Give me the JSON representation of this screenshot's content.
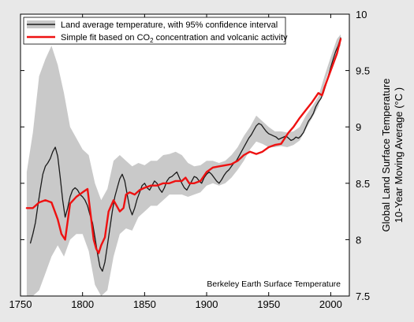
{
  "chart_data": {
    "type": "line",
    "title": "",
    "xlabel": "",
    "ylabel_lines": [
      "Global Land Surface Temperature",
      "10-Year Moving Average",
      "(°C )"
    ],
    "xlim": [
      1750,
      2015
    ],
    "ylim": [
      7.5,
      10
    ],
    "xticks": [
      1750,
      1800,
      1850,
      1900,
      1950,
      2000
    ],
    "yticks": [
      7.5,
      8,
      8.5,
      9,
      9.5,
      10
    ],
    "ytick_labels": [
      "7.5",
      "8",
      "8.5",
      "9",
      "9.5",
      "10"
    ],
    "yaxis_side": "right",
    "grid": false,
    "legend_position": "top-left",
    "annotation": "Berkeley Earth Surface Temperature",
    "colors": {
      "background": "#e8e8e8",
      "plot_background": "#ffffff",
      "uncertainty_band": "#c9c9c9",
      "observed_line": "#1a1a1a",
      "fit_line": "#ee1111"
    },
    "series": [
      {
        "name": "Land average temperature, with 95% confidence interval",
        "role": "observed",
        "x": [
          1758,
          1760,
          1762,
          1764,
          1766,
          1768,
          1770,
          1772,
          1774,
          1776,
          1778,
          1780,
          1782,
          1784,
          1786,
          1788,
          1790,
          1792,
          1794,
          1796,
          1798,
          1800,
          1802,
          1804,
          1806,
          1808,
          1810,
          1812,
          1814,
          1816,
          1818,
          1820,
          1822,
          1824,
          1826,
          1828,
          1830,
          1832,
          1834,
          1836,
          1838,
          1840,
          1842,
          1844,
          1846,
          1848,
          1850,
          1852,
          1854,
          1856,
          1858,
          1860,
          1862,
          1864,
          1866,
          1868,
          1870,
          1872,
          1874,
          1876,
          1878,
          1880,
          1882,
          1884,
          1886,
          1888,
          1890,
          1892,
          1894,
          1896,
          1898,
          1900,
          1902,
          1904,
          1906,
          1908,
          1910,
          1912,
          1914,
          1916,
          1918,
          1920,
          1922,
          1924,
          1926,
          1928,
          1930,
          1932,
          1934,
          1936,
          1938,
          1940,
          1942,
          1944,
          1946,
          1948,
          1950,
          1952,
          1954,
          1956,
          1958,
          1960,
          1962,
          1964,
          1966,
          1968,
          1970,
          1972,
          1974,
          1976,
          1978,
          1980,
          1982,
          1984,
          1986,
          1988,
          1990,
          1992,
          1994,
          1996,
          1998,
          2000,
          2002,
          2004,
          2006,
          2008
        ],
        "y": [
          7.97,
          8.05,
          8.15,
          8.3,
          8.45,
          8.58,
          8.65,
          8.68,
          8.72,
          8.78,
          8.82,
          8.74,
          8.55,
          8.35,
          8.2,
          8.28,
          8.38,
          8.44,
          8.46,
          8.44,
          8.4,
          8.38,
          8.35,
          8.3,
          8.22,
          8.15,
          8.02,
          7.88,
          7.76,
          7.72,
          7.8,
          7.95,
          8.1,
          8.25,
          8.38,
          8.46,
          8.54,
          8.58,
          8.52,
          8.4,
          8.28,
          8.22,
          8.28,
          8.36,
          8.42,
          8.48,
          8.5,
          8.46,
          8.44,
          8.48,
          8.52,
          8.5,
          8.45,
          8.42,
          8.46,
          8.52,
          8.55,
          8.56,
          8.58,
          8.6,
          8.55,
          8.5,
          8.46,
          8.44,
          8.48,
          8.52,
          8.56,
          8.55,
          8.52,
          8.5,
          8.55,
          8.58,
          8.6,
          8.58,
          8.55,
          8.52,
          8.5,
          8.53,
          8.57,
          8.6,
          8.62,
          8.65,
          8.68,
          8.7,
          8.74,
          8.78,
          8.82,
          8.86,
          8.9,
          8.93,
          8.97,
          9.01,
          9.03,
          9.02,
          8.99,
          8.96,
          8.94,
          8.93,
          8.92,
          8.91,
          8.89,
          8.9,
          8.91,
          8.92,
          8.9,
          8.88,
          8.89,
          8.91,
          8.9,
          8.92,
          8.95,
          9.0,
          9.05,
          9.08,
          9.12,
          9.18,
          9.22,
          9.25,
          9.3,
          9.37,
          9.45,
          9.53,
          9.6,
          9.67,
          9.72,
          9.79
        ]
      },
      {
        "name": "Simple fit based on CO2 concentration and volcanic activity",
        "name_parts": [
          "Simple fit based on CO",
          "2",
          " concentration and volcanic activity"
        ],
        "role": "fit",
        "x": [
          1755,
          1760,
          1765,
          1770,
          1775,
          1780,
          1783,
          1786,
          1790,
          1795,
          1800,
          1804,
          1807,
          1809,
          1811,
          1813,
          1815,
          1818,
          1821,
          1825,
          1830,
          1833,
          1835,
          1838,
          1842,
          1846,
          1850,
          1855,
          1860,
          1865,
          1870,
          1875,
          1880,
          1883,
          1886,
          1890,
          1895,
          1900,
          1905,
          1910,
          1915,
          1920,
          1925,
          1930,
          1935,
          1940,
          1945,
          1950,
          1955,
          1960,
          1963,
          1966,
          1970,
          1975,
          1980,
          1985,
          1990,
          1993,
          1995,
          2000,
          2005,
          2008
        ],
        "y": [
          8.28,
          8.28,
          8.33,
          8.35,
          8.33,
          8.18,
          8.05,
          8.0,
          8.32,
          8.38,
          8.42,
          8.45,
          8.18,
          8.0,
          7.92,
          7.88,
          7.95,
          8.02,
          8.25,
          8.35,
          8.25,
          8.28,
          8.4,
          8.42,
          8.4,
          8.44,
          8.46,
          8.48,
          8.48,
          8.5,
          8.5,
          8.52,
          8.52,
          8.55,
          8.5,
          8.5,
          8.52,
          8.6,
          8.64,
          8.65,
          8.66,
          8.67,
          8.7,
          8.75,
          8.78,
          8.76,
          8.78,
          8.82,
          8.84,
          8.85,
          8.9,
          8.95,
          9.0,
          9.08,
          9.15,
          9.22,
          9.3,
          9.28,
          9.35,
          9.5,
          9.65,
          9.78
        ]
      },
      {
        "name": "95% confidence interval",
        "role": "band",
        "x": [
          1755,
          1760,
          1765,
          1770,
          1775,
          1780,
          1785,
          1790,
          1795,
          1800,
          1805,
          1810,
          1815,
          1820,
          1825,
          1830,
          1835,
          1840,
          1845,
          1850,
          1855,
          1860,
          1865,
          1870,
          1875,
          1880,
          1885,
          1890,
          1895,
          1900,
          1905,
          1910,
          1915,
          1920,
          1925,
          1930,
          1935,
          1940,
          1945,
          1950,
          1955,
          1960,
          1965,
          1970,
          1975,
          1980,
          1985,
          1990,
          1995,
          2000,
          2005,
          2008
        ],
        "lower": [
          7.5,
          7.5,
          7.55,
          7.7,
          7.85,
          7.95,
          7.85,
          8.0,
          8.05,
          8.05,
          7.9,
          7.6,
          7.5,
          7.55,
          7.85,
          8.05,
          8.1,
          8.08,
          8.2,
          8.25,
          8.3,
          8.3,
          8.35,
          8.4,
          8.4,
          8.4,
          8.38,
          8.4,
          8.42,
          8.48,
          8.5,
          8.48,
          8.5,
          8.55,
          8.62,
          8.7,
          8.8,
          8.87,
          8.85,
          8.82,
          8.82,
          8.83,
          8.82,
          8.84,
          8.88,
          8.98,
          9.08,
          9.18,
          9.38,
          9.55,
          9.68,
          9.72
        ],
        "upper": [
          8.6,
          8.95,
          9.45,
          9.6,
          9.72,
          9.55,
          9.3,
          9.0,
          8.9,
          8.8,
          8.75,
          8.5,
          8.35,
          8.45,
          8.7,
          8.75,
          8.7,
          8.65,
          8.68,
          8.66,
          8.7,
          8.7,
          8.75,
          8.76,
          8.78,
          8.75,
          8.68,
          8.65,
          8.66,
          8.7,
          8.7,
          8.68,
          8.7,
          8.75,
          8.82,
          8.92,
          9.0,
          9.1,
          9.05,
          9.0,
          8.96,
          8.96,
          8.95,
          8.96,
          9.0,
          9.1,
          9.18,
          9.27,
          9.45,
          9.62,
          9.78,
          9.82
        ]
      }
    ]
  }
}
